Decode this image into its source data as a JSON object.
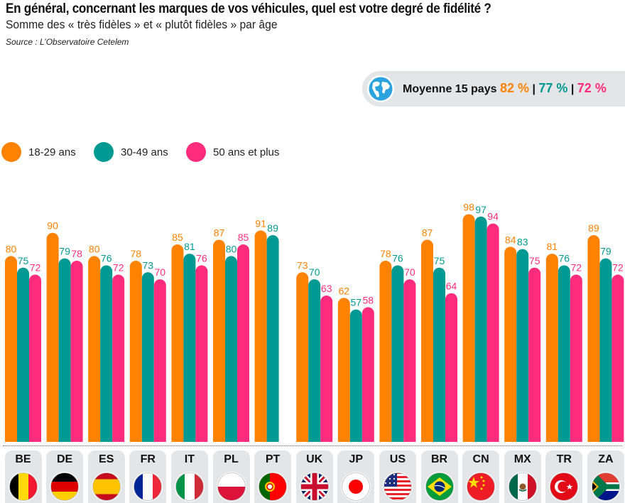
{
  "header": {
    "title": "En général, concernant les marques de vos véhicules, quel est votre degré de fidélité ?",
    "subtitle": "Somme des « très fidèles » et « plutôt fidèles » par âge",
    "source": "Source : L’Observatoire Cetelem"
  },
  "average": {
    "icon": "globe-icon",
    "label": "Moyenne 15 pays",
    "values": [
      "82 %",
      "77 %",
      "72 %"
    ],
    "separator": "|"
  },
  "colors": {
    "orange": "#ff8200",
    "teal": "#009a93",
    "pink": "#ff2c7d",
    "tab_bg": "#e4e5e7"
  },
  "chart_data": {
    "type": "bar",
    "title": "En général, concernant les marques de vos véhicules, quel est votre degré de fidélité ?",
    "subtitle": "Somme des « très fidèles » et « plutôt fidèles » par âge",
    "xlabel": "",
    "ylabel": "%",
    "ylim": [
      0,
      100
    ],
    "grid": false,
    "legend": "top-left",
    "categories": [
      "BE",
      "DE",
      "ES",
      "FR",
      "IT",
      "PL",
      "PT",
      "UK",
      "JP",
      "US",
      "BR",
      "CN",
      "MX",
      "TR",
      "ZA"
    ],
    "series": [
      {
        "name": "18-29 ans",
        "color": "#ff8200",
        "values": [
          80,
          90,
          80,
          78,
          85,
          87,
          91,
          73,
          62,
          78,
          87,
          98,
          84,
          81,
          89
        ]
      },
      {
        "name": "30-49 ans",
        "color": "#009a93",
        "values": [
          75,
          79,
          76,
          73,
          81,
          80,
          89,
          70,
          57,
          76,
          75,
          97,
          83,
          76,
          79
        ]
      },
      {
        "name": "50 ans et plus",
        "color": "#ff2c7d",
        "values": [
          72,
          78,
          72,
          70,
          76,
          85,
          null,
          63,
          58,
          70,
          64,
          94,
          75,
          72,
          72
        ]
      }
    ]
  },
  "flags": [
    "belgium-flag-icon",
    "germany-flag-icon",
    "spain-flag-icon",
    "france-flag-icon",
    "italy-flag-icon",
    "poland-flag-icon",
    "portugal-flag-icon",
    "uk-flag-icon",
    "japan-flag-icon",
    "usa-flag-icon",
    "brazil-flag-icon",
    "china-flag-icon",
    "mexico-flag-icon",
    "turkey-flag-icon",
    "south-africa-flag-icon"
  ]
}
